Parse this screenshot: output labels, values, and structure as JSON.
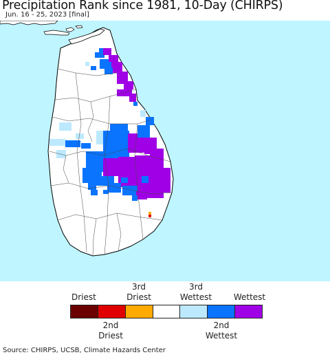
{
  "header": {
    "title": "Precipitation Rank since 1981, 10-Day (CHIRPS)",
    "subtitle": "Jun. 16 - 25, 2023 [final]"
  },
  "map": {
    "ocean_color": "#bff5ff",
    "land_color": "#ffffff",
    "border_color": "#000000"
  },
  "legend": {
    "top_labels": {
      "driest": "Driest",
      "third_driest": "3rd\nDriest",
      "third_wettest": "3rd\nWettest",
      "wettest": "Wettest"
    },
    "bottom_labels": {
      "second_driest": "2nd\nDriest",
      "second_wettest": "2nd\nWettest"
    },
    "colors": [
      "#6b0000",
      "#e00000",
      "#ffaa00",
      "#ffffff",
      "#bde9ff",
      "#0a74ff",
      "#a000e6"
    ]
  },
  "footer": {
    "source": "Source: CHIRPS, UCSB, Climate Hazards Center"
  }
}
